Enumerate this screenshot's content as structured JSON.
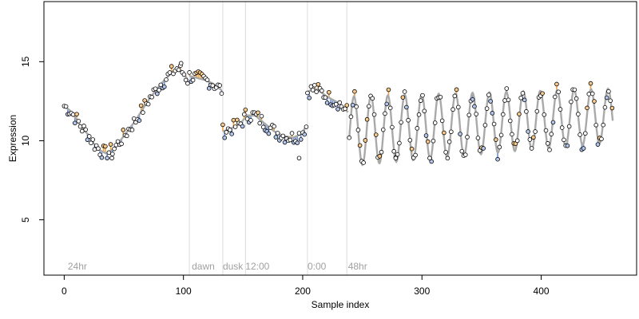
{
  "chart_data": {
    "type": "line",
    "xlabel": "Sample index",
    "ylabel": "Expression",
    "xlim": [
      -17,
      480
    ],
    "ylim": [
      1.5,
      18.8
    ],
    "xticks": [
      0,
      100,
      200,
      300,
      400
    ],
    "yticks": [
      5,
      10,
      15
    ],
    "grid": false,
    "annotations": [
      {
        "label": "24hr",
        "x": 3
      },
      {
        "label": "dawn",
        "x": 107
      },
      {
        "label": "dusk",
        "x": 133
      },
      {
        "label": "12:00",
        "x": 152
      },
      {
        "label": "0:00",
        "x": 204
      },
      {
        "label": "48hr",
        "x": 238
      }
    ],
    "vlines": [
      105,
      133,
      152,
      204,
      237
    ],
    "colors": {
      "trend_line": "#a9a9a9",
      "residual_under": "#6b8fd6",
      "residual_over": "#f2a33a",
      "point_fill_low": "#b3c6ee",
      "point_fill_high": "#f7c98a",
      "point_fill": "#ffffff",
      "point_stroke": "#000000"
    },
    "series": [
      {
        "segments": [
          {
            "start": 0,
            "end": 104,
            "knots": [
              [
                0,
                12.2
              ],
              [
                5,
                11.9
              ],
              [
                10,
                11.4
              ],
              [
                15,
                10.8
              ],
              [
                20,
                10.4
              ],
              [
                25,
                9.8
              ],
              [
                30,
                9.4
              ],
              [
                35,
                9.2
              ],
              [
                40,
                9.4
              ],
              [
                45,
                9.8
              ],
              [
                50,
                10.3
              ],
              [
                55,
                10.8
              ],
              [
                60,
                11.3
              ],
              [
                65,
                11.9
              ],
              [
                70,
                12.5
              ],
              [
                75,
                13.0
              ],
              [
                80,
                13.5
              ],
              [
                85,
                13.9
              ],
              [
                90,
                14.3
              ],
              [
                95,
                14.6
              ],
              [
                100,
                14.3
              ],
              [
                104,
                13.8
              ]
            ]
          },
          {
            "start": 105,
            "end": 132,
            "knots": [
              [
                105,
                14.1
              ],
              [
                110,
                14.0
              ],
              [
                115,
                13.9
              ],
              [
                120,
                13.8
              ],
              [
                125,
                13.6
              ],
              [
                132,
                13.2
              ]
            ]
          },
          {
            "start": 133,
            "end": 151,
            "knots": [
              [
                133,
                10.6
              ],
              [
                138,
                10.7
              ],
              [
                143,
                10.9
              ],
              [
                148,
                11.1
              ],
              [
                151,
                11.4
              ]
            ]
          },
          {
            "start": 152,
            "end": 203,
            "knots": [
              [
                152,
                11.6
              ],
              [
                160,
                11.6
              ],
              [
                168,
                11.1
              ],
              [
                176,
                10.6
              ],
              [
                184,
                10.3
              ],
              [
                192,
                10.2
              ],
              [
                198,
                10.4
              ],
              [
                203,
                10.9
              ]
            ]
          },
          {
            "start": 204,
            "end": 238,
            "knots": [
              [
                204,
                13.1
              ],
              [
                210,
                13.3
              ],
              [
                215,
                13.1
              ],
              [
                220,
                12.8
              ],
              [
                225,
                12.6
              ],
              [
                230,
                12.4
              ],
              [
                238,
                11.8
              ]
            ]
          },
          {
            "start": 239,
            "end": 460,
            "knots": [
              [
                239,
                10.6
              ],
              [
                460,
                11.6
              ]
            ],
            "oscillation": {
              "amp_start": 2.2,
              "amp_end": 1.7,
              "period": 14.2,
              "phase_sample": 243
            }
          }
        ],
        "step": 1.5,
        "noise_amplitude": 0.45,
        "outlier_samples": [
          {
            "x": 278,
            "y": 8.9
          },
          {
            "x": 197,
            "y": 8.9
          },
          {
            "x": 40,
            "y": 8.9
          },
          {
            "x": 98,
            "y": 14.9
          }
        ]
      }
    ]
  }
}
